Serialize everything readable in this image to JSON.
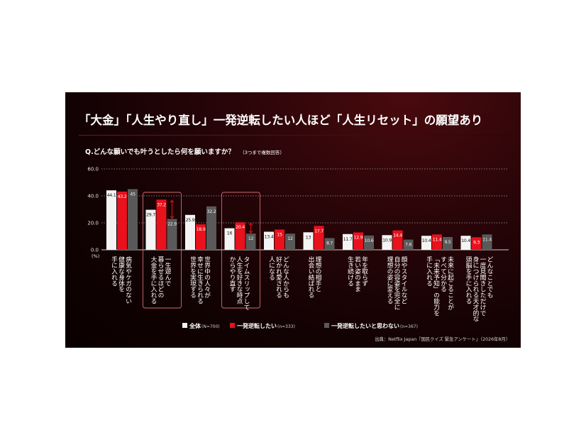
{
  "title": "「大金」「人生やり直し」一発逆転したい人ほど「人生リセット」の願望あり",
  "question": "Q.どんな願いでも叶うとしたら何を願いますか？",
  "question_note": "（3つまで複数回答）",
  "source": "出典：Netflix Japan『国民クイズ 緊急アンケート』（2026年8月）",
  "colors": {
    "all": "#f4f4f4",
    "want": "#e8111c",
    "not_want": "#595959",
    "highlight": "#d06c70"
  },
  "chart_data": {
    "type": "bar",
    "ylim": [
      0,
      60
    ],
    "yticks": [
      "60.0",
      "40.0",
      "20.0",
      "0.0"
    ],
    "yunit": "(%)",
    "categories": [
      "病気やケガのない健康な身体を手に入れる",
      "一生遊んで暮らせるほどの大金を手に入れる",
      "世界中の人々が幸せに生きられる世界を実現する",
      "タイムスリップして人生を好きな時点からやり直す",
      "どんな人からも好かれ愛される人になる",
      "理想の相手と出会い結ばれる",
      "年を取らず若い姿のまま生き続ける",
      "顔やスタイルなど自分の容姿を完全に理想の姿に変える",
      "未来に起こることがすべて分かる「未来予知」の能力を手に入れる",
      "どんなことでも一度見聞きしただけで身につけられる天才的な頭脳を手に入れる"
    ],
    "category_lines": [
      [
        "病気やケガのない",
        "健康な身体を",
        "手に入れる"
      ],
      [
        "一生遊んで",
        "暮らせるほどの",
        "大金を手に入れる"
      ],
      [
        "世界中の人々が",
        "幸せに生きられる",
        "世界を実現する"
      ],
      [
        "タイムスリップして",
        "人生を好きな時点",
        "からやり直す"
      ],
      [
        "どんな人からも",
        "好かれ愛される",
        "人になる"
      ],
      [
        "理想の相手と",
        "出会い結ばれる"
      ],
      [
        "年を取らず",
        "若い姿のまま",
        "生き続ける"
      ],
      [
        "顔やスタイルなど",
        "自分の容姿を完全に",
        "理想の姿に変える"
      ],
      [
        "未来に起こることが",
        "すべて分かる",
        "「未来予知」の能力を",
        "手に入れる"
      ],
      [
        "どんなことでも",
        "一度見聞きしただけで",
        "身につけられる天才的な",
        "頭脳を手に入れる"
      ]
    ],
    "series": [
      {
        "name": "全体",
        "n": "(N=700)",
        "key": "all",
        "values": [
          44.1,
          29.7,
          25.9,
          16.0,
          13.4,
          13.0,
          11.7,
          10.9,
          10.4,
          10.4
        ]
      },
      {
        "name": "一発逆転したい",
        "n": "(n=333)",
        "key": "want",
        "values": [
          43.2,
          37.2,
          18.9,
          20.4,
          15.0,
          17.7,
          12.9,
          14.4,
          11.4,
          9.3
        ]
      },
      {
        "name": "一発逆転したいと思わない",
        "n": "(n=367)",
        "key": "not_want",
        "values": [
          45.0,
          22.9,
          32.2,
          12.0,
          12.0,
          8.7,
          10.6,
          7.6,
          9.5,
          11.4
        ]
      }
    ],
    "highlighted_categories": [
      1,
      3
    ]
  }
}
